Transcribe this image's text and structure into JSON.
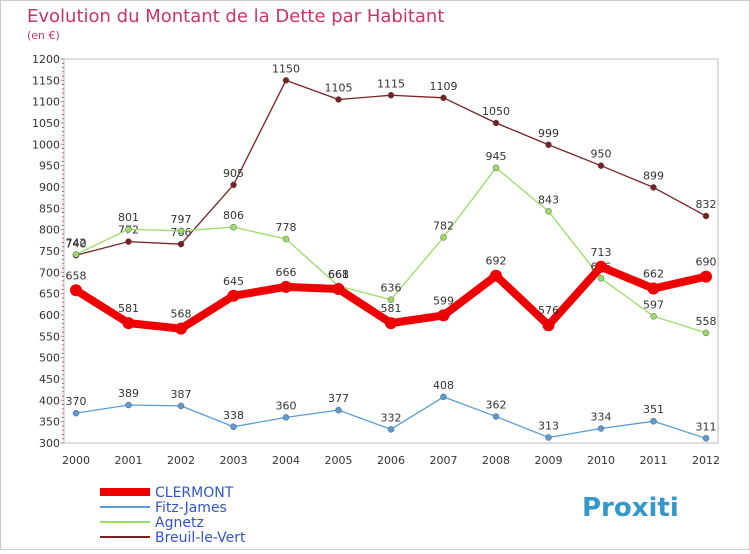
{
  "chart_data": {
    "type": "line",
    "title": "Evolution du Montant de la Dette par Habitant",
    "subtitle": "(en €)",
    "x": [
      "2000",
      "2001",
      "2002",
      "2003",
      "2004",
      "2005",
      "2006",
      "2007",
      "2008",
      "2009",
      "2010",
      "2011",
      "2012"
    ],
    "yticks": [
      300,
      350,
      400,
      450,
      500,
      550,
      600,
      650,
      700,
      750,
      800,
      850,
      900,
      950,
      1000,
      1050,
      1100,
      1150,
      1200
    ],
    "ylim": [
      300,
      1200
    ],
    "grid": false,
    "legend_position": "bottom-left",
    "series": [
      {
        "name": "CLERMONT",
        "color": "#ee0000",
        "values": [
          658,
          581,
          568,
          645,
          666,
          661,
          581,
          599,
          692,
          576,
          713,
          662,
          690
        ]
      },
      {
        "name": "Fitz-James",
        "color": "#5b9bd5",
        "values": [
          370,
          389,
          387,
          338,
          360,
          377,
          332,
          408,
          362,
          313,
          334,
          351,
          311
        ]
      },
      {
        "name": "Agnetz",
        "color": "#99dd66",
        "values": [
          742,
          801,
          797,
          806,
          778,
          668,
          636,
          782,
          945,
          843,
          686,
          597,
          558
        ]
      },
      {
        "name": "Breuil-le-Vert",
        "color": "#772222",
        "values": [
          740,
          772,
          766,
          905,
          1150,
          1105,
          1115,
          1109,
          1050,
          999,
          950,
          899,
          832
        ]
      }
    ]
  },
  "logo_text": "Proxiti"
}
